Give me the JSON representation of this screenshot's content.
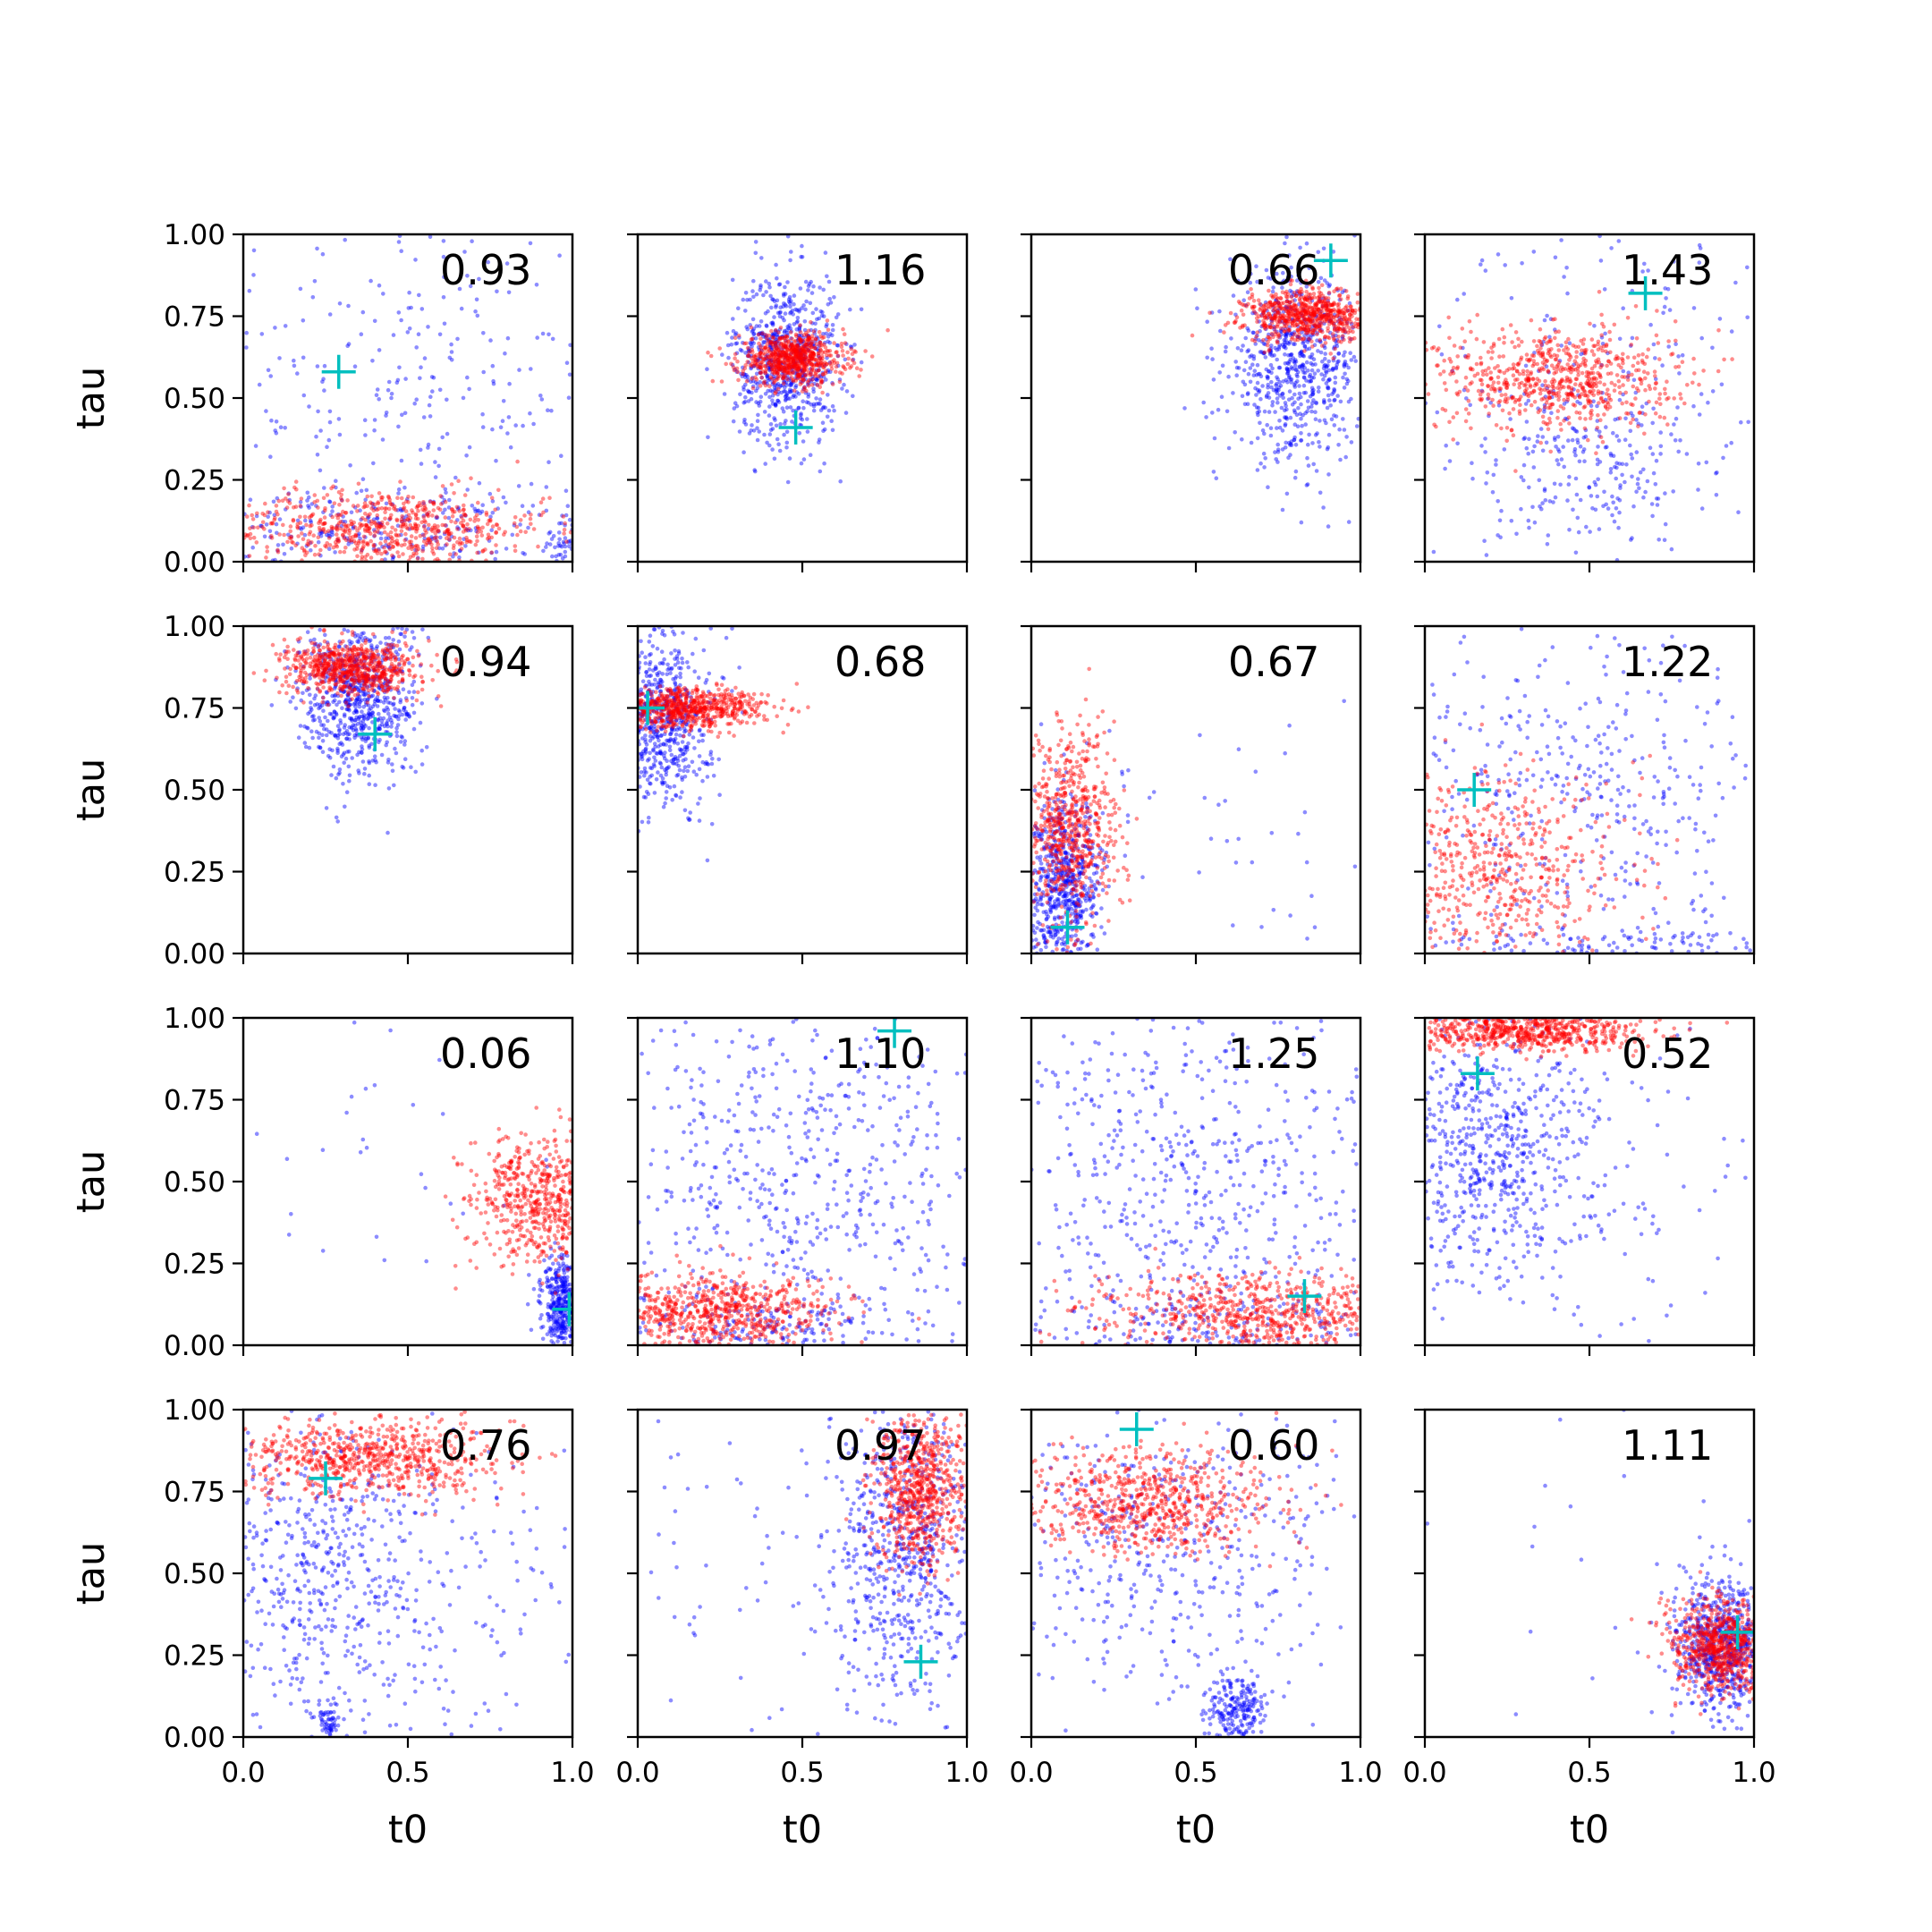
{
  "colors": {
    "posterior_a": "#0000ff",
    "posterior_b": "#ff0000",
    "true_marker": "#00bfbf",
    "frame": "#000000"
  },
  "chart_data": {
    "type": "scatter",
    "layout": "4x4 grid of subplots, shared axes",
    "xlabel": "t0",
    "ylabel": "tau",
    "xlim": [
      0.0,
      1.0
    ],
    "ylim": [
      0.0,
      1.0
    ],
    "xticks": [
      "0.0",
      "0.5",
      "1.0"
    ],
    "yticks": [
      "0.00",
      "0.25",
      "0.50",
      "0.75",
      "1.00"
    ],
    "grid": false,
    "marker_true": "+",
    "panels": [
      {
        "value": "0.93",
        "truth": [
          0.29,
          0.58
        ],
        "blue": [
          {
            "cx": 0.5,
            "cy": 0.55,
            "sx": 0.35,
            "sy": 0.3,
            "n": 300
          },
          {
            "cx": 0.4,
            "cy": 0.1,
            "sx": 0.3,
            "sy": 0.06,
            "n": 280
          },
          {
            "cx": 0.98,
            "cy": 0.05,
            "sx": 0.03,
            "sy": 0.06,
            "n": 60
          }
        ],
        "red": [
          {
            "cx": 0.42,
            "cy": 0.1,
            "sx": 0.25,
            "sy": 0.06,
            "n": 700
          }
        ]
      },
      {
        "value": "1.16",
        "truth": [
          0.48,
          0.41
        ],
        "blue": [
          {
            "cx": 0.45,
            "cy": 0.62,
            "sx": 0.08,
            "sy": 0.13,
            "n": 700
          }
        ],
        "red": [
          {
            "cx": 0.47,
            "cy": 0.62,
            "sx": 0.08,
            "sy": 0.04,
            "n": 700
          }
        ]
      },
      {
        "value": "0.66",
        "truth": [
          0.91,
          0.92
        ],
        "blue": [
          {
            "cx": 0.8,
            "cy": 0.6,
            "sx": 0.1,
            "sy": 0.14,
            "n": 700
          }
        ],
        "red": [
          {
            "cx": 0.85,
            "cy": 0.75,
            "sx": 0.1,
            "sy": 0.04,
            "n": 700
          }
        ]
      },
      {
        "value": "1.43",
        "truth": [
          0.67,
          0.82
        ],
        "blue": [
          {
            "cx": 0.5,
            "cy": 0.5,
            "sx": 0.35,
            "sy": 0.3,
            "n": 300
          },
          {
            "cx": 0.5,
            "cy": 0.3,
            "sx": 0.12,
            "sy": 0.12,
            "n": 150
          }
        ],
        "red": [
          {
            "cx": 0.4,
            "cy": 0.56,
            "sx": 0.18,
            "sy": 0.08,
            "n": 700
          }
        ]
      },
      {
        "value": "0.94",
        "truth": [
          0.4,
          0.67
        ],
        "blue": [
          {
            "cx": 0.35,
            "cy": 0.78,
            "sx": 0.09,
            "sy": 0.12,
            "n": 700
          }
        ],
        "red": [
          {
            "cx": 0.33,
            "cy": 0.87,
            "sx": 0.1,
            "sy": 0.04,
            "n": 700
          }
        ]
      },
      {
        "value": "0.68",
        "truth": [
          0.03,
          0.75
        ],
        "blue": [
          {
            "cx": 0.06,
            "cy": 0.72,
            "sx": 0.08,
            "sy": 0.14,
            "n": 700
          }
        ],
        "red": [
          {
            "cx": 0.15,
            "cy": 0.75,
            "sx": 0.12,
            "sy": 0.03,
            "n": 700
          }
        ]
      },
      {
        "value": "0.67",
        "truth": [
          0.11,
          0.08
        ],
        "blue": [
          {
            "cx": 0.1,
            "cy": 0.2,
            "sx": 0.06,
            "sy": 0.13,
            "n": 650
          },
          {
            "cx": 0.6,
            "cy": 0.3,
            "sx": 0.3,
            "sy": 0.3,
            "n": 60
          }
        ],
        "red": [
          {
            "cx": 0.12,
            "cy": 0.38,
            "sx": 0.07,
            "sy": 0.15,
            "n": 650
          }
        ]
      },
      {
        "value": "1.22",
        "truth": [
          0.15,
          0.5
        ],
        "blue": [
          {
            "cx": 0.5,
            "cy": 0.5,
            "sx": 0.35,
            "sy": 0.3,
            "n": 500
          },
          {
            "cx": 0.6,
            "cy": 0.03,
            "sx": 0.3,
            "sy": 0.03,
            "n": 120
          }
        ],
        "red": [
          {
            "cx": 0.2,
            "cy": 0.25,
            "sx": 0.2,
            "sy": 0.15,
            "n": 600
          }
        ]
      },
      {
        "value": "0.06",
        "truth": [
          0.99,
          0.11
        ],
        "blue": [
          {
            "cx": 0.97,
            "cy": 0.12,
            "sx": 0.03,
            "sy": 0.07,
            "n": 400
          },
          {
            "cx": 0.5,
            "cy": 0.5,
            "sx": 0.3,
            "sy": 0.3,
            "n": 40
          }
        ],
        "red": [
          {
            "cx": 0.9,
            "cy": 0.45,
            "sx": 0.1,
            "sy": 0.1,
            "n": 600
          }
        ]
      },
      {
        "value": "1.10",
        "truth": [
          0.78,
          0.96
        ],
        "blue": [
          {
            "cx": 0.5,
            "cy": 0.5,
            "sx": 0.35,
            "sy": 0.3,
            "n": 650
          },
          {
            "cx": 0.4,
            "cy": 0.05,
            "sx": 0.25,
            "sy": 0.05,
            "n": 200
          }
        ],
        "red": [
          {
            "cx": 0.25,
            "cy": 0.1,
            "sx": 0.18,
            "sy": 0.06,
            "n": 700
          }
        ]
      },
      {
        "value": "1.25",
        "truth": [
          0.83,
          0.15
        ],
        "blue": [
          {
            "cx": 0.5,
            "cy": 0.5,
            "sx": 0.35,
            "sy": 0.3,
            "n": 650
          },
          {
            "cx": 0.5,
            "cy": 0.05,
            "sx": 0.3,
            "sy": 0.05,
            "n": 200
          }
        ],
        "red": [
          {
            "cx": 0.7,
            "cy": 0.1,
            "sx": 0.25,
            "sy": 0.06,
            "n": 700
          }
        ]
      },
      {
        "value": "0.52",
        "truth": [
          0.16,
          0.83
        ],
        "blue": [
          {
            "cx": 0.2,
            "cy": 0.6,
            "sx": 0.15,
            "sy": 0.2,
            "n": 600
          },
          {
            "cx": 0.5,
            "cy": 0.5,
            "sx": 0.3,
            "sy": 0.3,
            "n": 150
          }
        ],
        "red": [
          {
            "cx": 0.3,
            "cy": 0.96,
            "sx": 0.18,
            "sy": 0.03,
            "n": 700
          }
        ]
      },
      {
        "value": "0.76",
        "truth": [
          0.25,
          0.79
        ],
        "blue": [
          {
            "cx": 0.2,
            "cy": 0.5,
            "sx": 0.2,
            "sy": 0.25,
            "n": 500
          },
          {
            "cx": 0.26,
            "cy": 0.05,
            "sx": 0.02,
            "sy": 0.03,
            "n": 60
          },
          {
            "cx": 0.5,
            "cy": 0.5,
            "sx": 0.35,
            "sy": 0.3,
            "n": 200
          }
        ],
        "red": [
          {
            "cx": 0.38,
            "cy": 0.85,
            "sx": 0.2,
            "sy": 0.06,
            "n": 700
          }
        ]
      },
      {
        "value": "0.97",
        "truth": [
          0.86,
          0.23
        ],
        "blue": [
          {
            "cx": 0.8,
            "cy": 0.55,
            "sx": 0.1,
            "sy": 0.25,
            "n": 650
          },
          {
            "cx": 0.5,
            "cy": 0.5,
            "sx": 0.35,
            "sy": 0.3,
            "n": 100
          }
        ],
        "red": [
          {
            "cx": 0.86,
            "cy": 0.75,
            "sx": 0.07,
            "sy": 0.12,
            "n": 700
          }
        ]
      },
      {
        "value": "0.60",
        "truth": [
          0.32,
          0.94
        ],
        "blue": [
          {
            "cx": 0.4,
            "cy": 0.6,
            "sx": 0.3,
            "sy": 0.25,
            "n": 500
          },
          {
            "cx": 0.62,
            "cy": 0.08,
            "sx": 0.04,
            "sy": 0.05,
            "n": 220
          }
        ],
        "red": [
          {
            "cx": 0.35,
            "cy": 0.72,
            "sx": 0.2,
            "sy": 0.08,
            "n": 700
          }
        ]
      },
      {
        "value": "1.11",
        "truth": [
          0.95,
          0.32
        ],
        "blue": [
          {
            "cx": 0.9,
            "cy": 0.28,
            "sx": 0.07,
            "sy": 0.1,
            "n": 700
          },
          {
            "cx": 0.5,
            "cy": 0.5,
            "sx": 0.3,
            "sy": 0.3,
            "n": 30
          }
        ],
        "red": [
          {
            "cx": 0.9,
            "cy": 0.28,
            "sx": 0.07,
            "sy": 0.07,
            "n": 700
          }
        ]
      }
    ]
  }
}
